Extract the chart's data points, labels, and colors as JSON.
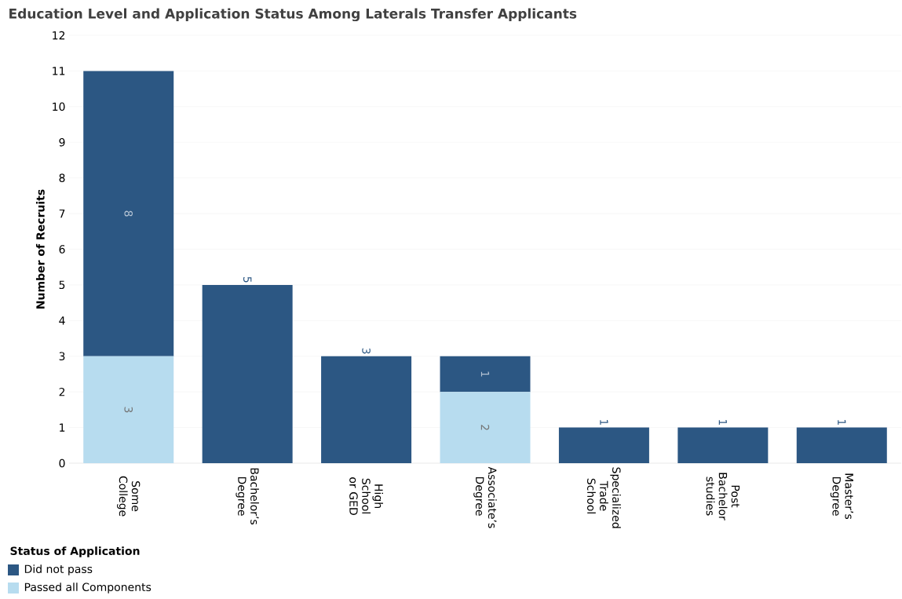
{
  "chart_data": {
    "type": "bar",
    "title": "Education Level and Application Status Among Laterals Transfer Applicants",
    "ylabel": "Number of Recruits",
    "legend_title": "Status of Application",
    "categories": [
      "Some College",
      "Bachelor’s Degree",
      "High School or GED",
      "Associate’s Degree",
      "Specialized Trade School",
      "Post Bachelor studies",
      "Master’s Degree"
    ],
    "series": [
      {
        "name": "Passed all Components",
        "color": "#b7dcef",
        "values": [
          3,
          null,
          null,
          2,
          null,
          null,
          null
        ]
      },
      {
        "name": "Did not pass",
        "color": "#2c5783",
        "values": [
          8,
          5,
          3,
          1,
          1,
          1,
          1
        ]
      }
    ],
    "stacked": true,
    "ylim": [
      0,
      12
    ],
    "yticks": [
      0,
      1,
      2,
      3,
      4,
      5,
      6,
      7,
      8,
      9,
      10,
      11,
      12
    ],
    "grid": "y",
    "legend": "bottom left",
    "data_labels": true
  }
}
